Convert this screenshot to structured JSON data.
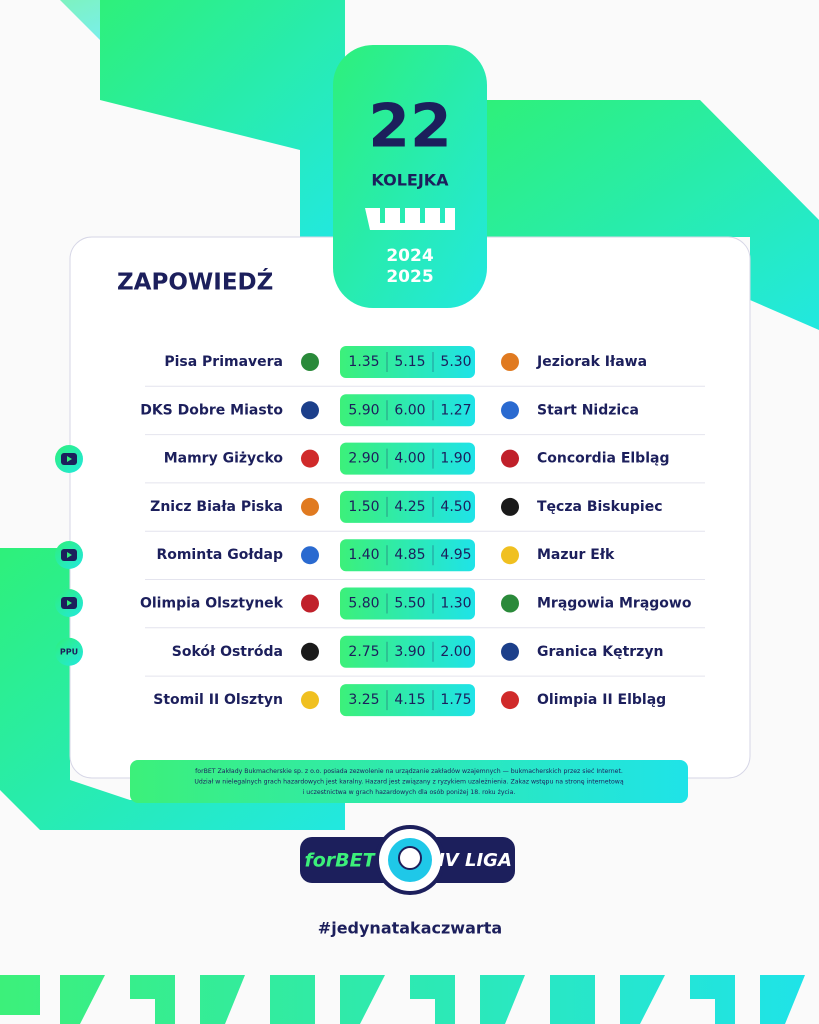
{
  "header": {
    "round_number": "22",
    "round_label": "KOLEJKA",
    "season_start": "2024",
    "season_end": "2025"
  },
  "title": "ZAPOWIEDŹ",
  "matches": [
    {
      "home": "Pisa Primavera",
      "odds": [
        "1.35",
        "5.15",
        "5.30"
      ],
      "away": "Jeziorak Iława"
    },
    {
      "home": "DKS Dobre Miasto",
      "odds": [
        "5.90",
        "6.00",
        "1.27"
      ],
      "away": "Start Nidzica"
    },
    {
      "home": "Mamry Giżycko",
      "odds": [
        "2.90",
        "4.00",
        "1.90"
      ],
      "away": "Concordia Elbląg"
    },
    {
      "home": "Znicz Biała Piska",
      "odds": [
        "1.50",
        "4.25",
        "4.50"
      ],
      "away": "Tęcza Biskupiec"
    },
    {
      "home": "Rominta Gołdap",
      "odds": [
        "1.40",
        "4.85",
        "4.95"
      ],
      "away": "Mazur Ełk"
    },
    {
      "home": "Olimpia Olsztynek",
      "odds": [
        "5.80",
        "5.50",
        "1.30"
      ],
      "away": "Mrągowia Mrągowo"
    },
    {
      "home": "Sokół Ostróda",
      "odds": [
        "2.75",
        "3.90",
        "2.00"
      ],
      "away": "Granica Kętrzyn",
      "badge": "PPU"
    },
    {
      "home": "Stomil II Olsztyn",
      "odds": [
        "3.25",
        "4.15",
        "1.75"
      ],
      "away": "Olimpia II Elbląg"
    }
  ],
  "disclaimer": [
    "forBET Zakłady Bukmacherskie sp. z o.o. posiada zezwolenie na urządzanie zakładów wzajemnych — bukmacherskich przez sieć Internet.",
    "Udział w nielegalnych grach hazardowych jest karalny. Hazard jest związany z ryzykiem uzależnienia. Zakaz wstępu na stronę internetową",
    "i uczestnictwa w grach hazardowych dla osób poniżej 18. roku życia."
  ],
  "logo": {
    "sponsor": "forBET",
    "league": "IV LIGA"
  },
  "hashtag": "#jedynatakaczwarta"
}
